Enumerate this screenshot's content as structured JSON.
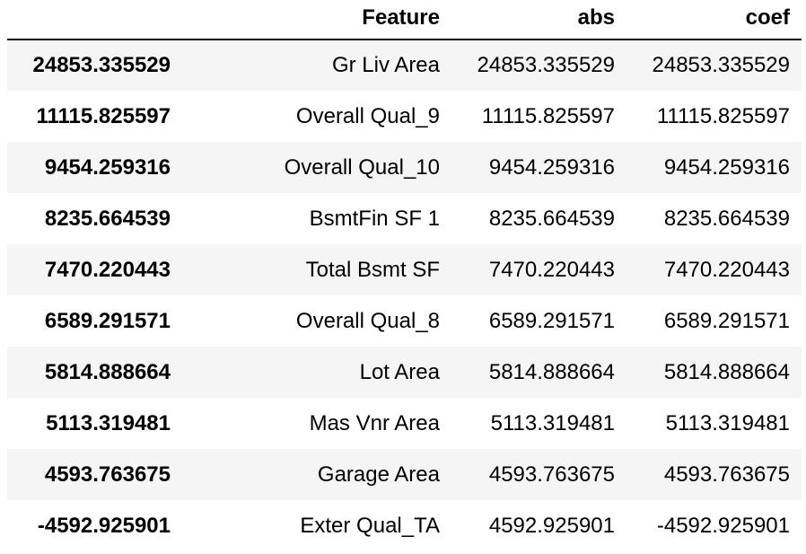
{
  "table": {
    "columns": [
      "",
      "Feature",
      "abs",
      "coef"
    ],
    "rows": [
      {
        "index": "24853.335529",
        "feature": "Gr Liv Area",
        "abs": "24853.335529",
        "coef": "24853.335529"
      },
      {
        "index": "11115.825597",
        "feature": "Overall Qual_9",
        "abs": "11115.825597",
        "coef": "11115.825597"
      },
      {
        "index": "9454.259316",
        "feature": "Overall Qual_10",
        "abs": "9454.259316",
        "coef": "9454.259316"
      },
      {
        "index": "8235.664539",
        "feature": "BsmtFin SF 1",
        "abs": "8235.664539",
        "coef": "8235.664539"
      },
      {
        "index": "7470.220443",
        "feature": "Total Bsmt SF",
        "abs": "7470.220443",
        "coef": "7470.220443"
      },
      {
        "index": "6589.291571",
        "feature": "Overall Qual_8",
        "abs": "6589.291571",
        "coef": "6589.291571"
      },
      {
        "index": "5814.888664",
        "feature": "Lot Area",
        "abs": "5814.888664",
        "coef": "5814.888664"
      },
      {
        "index": "5113.319481",
        "feature": "Mas Vnr Area",
        "abs": "5113.319481",
        "coef": "5113.319481"
      },
      {
        "index": "4593.763675",
        "feature": "Garage Area",
        "abs": "4593.763675",
        "coef": "4593.763675"
      },
      {
        "index": "-4592.925901",
        "feature": "Exter Qual_TA",
        "abs": "4592.925901",
        "coef": "-4592.925901"
      }
    ]
  },
  "colors": {
    "stripe": "#f5f5f5",
    "text": "#000000",
    "header_rule": "#000000"
  }
}
